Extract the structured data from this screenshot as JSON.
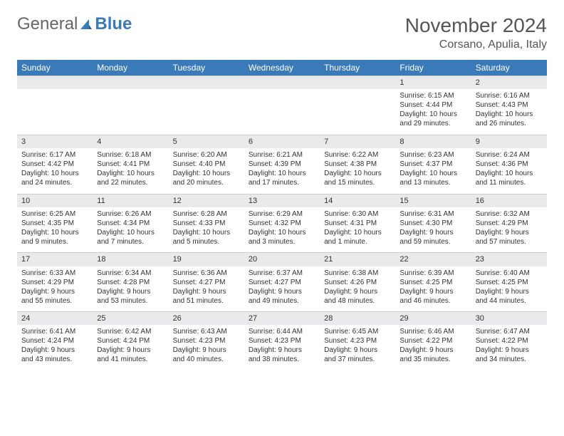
{
  "logo": {
    "part1": "General",
    "part2": "Blue"
  },
  "title": "November 2024",
  "location": "Corsano, Apulia, Italy",
  "colors": {
    "header_bg": "#3a7ab8",
    "header_text": "#ffffff",
    "daynum_bg": "#e8eaec",
    "body_text": "#333333",
    "title_text": "#555555"
  },
  "day_headers": [
    "Sunday",
    "Monday",
    "Tuesday",
    "Wednesday",
    "Thursday",
    "Friday",
    "Saturday"
  ],
  "weeks": [
    [
      null,
      null,
      null,
      null,
      null,
      {
        "n": "1",
        "sr": "Sunrise: 6:15 AM",
        "ss": "Sunset: 4:44 PM",
        "dl": "Daylight: 10 hours and 29 minutes."
      },
      {
        "n": "2",
        "sr": "Sunrise: 6:16 AM",
        "ss": "Sunset: 4:43 PM",
        "dl": "Daylight: 10 hours and 26 minutes."
      }
    ],
    [
      {
        "n": "3",
        "sr": "Sunrise: 6:17 AM",
        "ss": "Sunset: 4:42 PM",
        "dl": "Daylight: 10 hours and 24 minutes."
      },
      {
        "n": "4",
        "sr": "Sunrise: 6:18 AM",
        "ss": "Sunset: 4:41 PM",
        "dl": "Daylight: 10 hours and 22 minutes."
      },
      {
        "n": "5",
        "sr": "Sunrise: 6:20 AM",
        "ss": "Sunset: 4:40 PM",
        "dl": "Daylight: 10 hours and 20 minutes."
      },
      {
        "n": "6",
        "sr": "Sunrise: 6:21 AM",
        "ss": "Sunset: 4:39 PM",
        "dl": "Daylight: 10 hours and 17 minutes."
      },
      {
        "n": "7",
        "sr": "Sunrise: 6:22 AM",
        "ss": "Sunset: 4:38 PM",
        "dl": "Daylight: 10 hours and 15 minutes."
      },
      {
        "n": "8",
        "sr": "Sunrise: 6:23 AM",
        "ss": "Sunset: 4:37 PM",
        "dl": "Daylight: 10 hours and 13 minutes."
      },
      {
        "n": "9",
        "sr": "Sunrise: 6:24 AM",
        "ss": "Sunset: 4:36 PM",
        "dl": "Daylight: 10 hours and 11 minutes."
      }
    ],
    [
      {
        "n": "10",
        "sr": "Sunrise: 6:25 AM",
        "ss": "Sunset: 4:35 PM",
        "dl": "Daylight: 10 hours and 9 minutes."
      },
      {
        "n": "11",
        "sr": "Sunrise: 6:26 AM",
        "ss": "Sunset: 4:34 PM",
        "dl": "Daylight: 10 hours and 7 minutes."
      },
      {
        "n": "12",
        "sr": "Sunrise: 6:28 AM",
        "ss": "Sunset: 4:33 PM",
        "dl": "Daylight: 10 hours and 5 minutes."
      },
      {
        "n": "13",
        "sr": "Sunrise: 6:29 AM",
        "ss": "Sunset: 4:32 PM",
        "dl": "Daylight: 10 hours and 3 minutes."
      },
      {
        "n": "14",
        "sr": "Sunrise: 6:30 AM",
        "ss": "Sunset: 4:31 PM",
        "dl": "Daylight: 10 hours and 1 minute."
      },
      {
        "n": "15",
        "sr": "Sunrise: 6:31 AM",
        "ss": "Sunset: 4:30 PM",
        "dl": "Daylight: 9 hours and 59 minutes."
      },
      {
        "n": "16",
        "sr": "Sunrise: 6:32 AM",
        "ss": "Sunset: 4:29 PM",
        "dl": "Daylight: 9 hours and 57 minutes."
      }
    ],
    [
      {
        "n": "17",
        "sr": "Sunrise: 6:33 AM",
        "ss": "Sunset: 4:29 PM",
        "dl": "Daylight: 9 hours and 55 minutes."
      },
      {
        "n": "18",
        "sr": "Sunrise: 6:34 AM",
        "ss": "Sunset: 4:28 PM",
        "dl": "Daylight: 9 hours and 53 minutes."
      },
      {
        "n": "19",
        "sr": "Sunrise: 6:36 AM",
        "ss": "Sunset: 4:27 PM",
        "dl": "Daylight: 9 hours and 51 minutes."
      },
      {
        "n": "20",
        "sr": "Sunrise: 6:37 AM",
        "ss": "Sunset: 4:27 PM",
        "dl": "Daylight: 9 hours and 49 minutes."
      },
      {
        "n": "21",
        "sr": "Sunrise: 6:38 AM",
        "ss": "Sunset: 4:26 PM",
        "dl": "Daylight: 9 hours and 48 minutes."
      },
      {
        "n": "22",
        "sr": "Sunrise: 6:39 AM",
        "ss": "Sunset: 4:25 PM",
        "dl": "Daylight: 9 hours and 46 minutes."
      },
      {
        "n": "23",
        "sr": "Sunrise: 6:40 AM",
        "ss": "Sunset: 4:25 PM",
        "dl": "Daylight: 9 hours and 44 minutes."
      }
    ],
    [
      {
        "n": "24",
        "sr": "Sunrise: 6:41 AM",
        "ss": "Sunset: 4:24 PM",
        "dl": "Daylight: 9 hours and 43 minutes."
      },
      {
        "n": "25",
        "sr": "Sunrise: 6:42 AM",
        "ss": "Sunset: 4:24 PM",
        "dl": "Daylight: 9 hours and 41 minutes."
      },
      {
        "n": "26",
        "sr": "Sunrise: 6:43 AM",
        "ss": "Sunset: 4:23 PM",
        "dl": "Daylight: 9 hours and 40 minutes."
      },
      {
        "n": "27",
        "sr": "Sunrise: 6:44 AM",
        "ss": "Sunset: 4:23 PM",
        "dl": "Daylight: 9 hours and 38 minutes."
      },
      {
        "n": "28",
        "sr": "Sunrise: 6:45 AM",
        "ss": "Sunset: 4:23 PM",
        "dl": "Daylight: 9 hours and 37 minutes."
      },
      {
        "n": "29",
        "sr": "Sunrise: 6:46 AM",
        "ss": "Sunset: 4:22 PM",
        "dl": "Daylight: 9 hours and 35 minutes."
      },
      {
        "n": "30",
        "sr": "Sunrise: 6:47 AM",
        "ss": "Sunset: 4:22 PM",
        "dl": "Daylight: 9 hours and 34 minutes."
      }
    ]
  ]
}
